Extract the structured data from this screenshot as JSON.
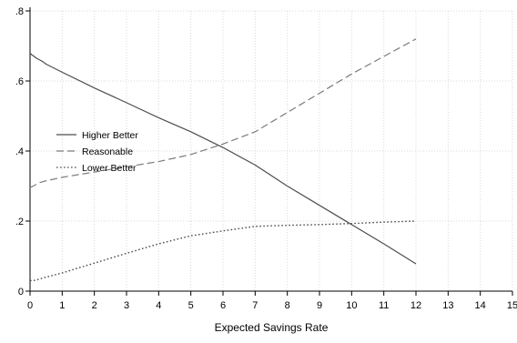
{
  "chart_data": {
    "type": "line",
    "xlabel": "Expected Savings Rate",
    "ylabel": "",
    "xlim": [
      0,
      15
    ],
    "ylim": [
      0,
      0.8
    ],
    "x_ticks": [
      0,
      1,
      2,
      3,
      4,
      5,
      6,
      7,
      8,
      9,
      10,
      11,
      12,
      13,
      14,
      15
    ],
    "x_tick_labels": [
      "0",
      "1",
      "2",
      "3",
      "4",
      "5",
      "6",
      "7",
      "8",
      "9",
      "10",
      "11",
      "12",
      "13",
      "14",
      "15"
    ],
    "y_ticks": [
      0,
      0.2,
      0.4,
      0.6,
      0.8
    ],
    "y_tick_labels": [
      "0",
      ".2",
      ".4",
      ".6",
      ".8"
    ],
    "grid": true,
    "legend_position": "left-middle",
    "series": [
      {
        "name": "Higher Better",
        "style": "solid",
        "color": "#4d4d4d",
        "x": [
          0,
          0.05,
          0.1,
          0.2,
          0.3,
          0.4,
          0.5,
          1,
          2,
          3,
          4,
          5,
          6,
          7,
          8,
          9,
          10,
          11,
          12
        ],
        "y": [
          0.68,
          0.675,
          0.672,
          0.665,
          0.66,
          0.655,
          0.648,
          0.625,
          0.58,
          0.538,
          0.495,
          0.455,
          0.41,
          0.36,
          0.3,
          0.245,
          0.19,
          0.135,
          0.078
        ]
      },
      {
        "name": "Reasonable",
        "style": "dashed",
        "color": "#7a7a7a",
        "x": [
          0,
          0.05,
          0.1,
          0.2,
          0.3,
          0.5,
          1,
          2,
          3,
          4,
          5,
          6,
          7,
          8,
          9,
          10,
          11,
          12
        ],
        "y": [
          0.295,
          0.298,
          0.3,
          0.305,
          0.31,
          0.315,
          0.325,
          0.34,
          0.355,
          0.37,
          0.39,
          0.42,
          0.455,
          0.51,
          0.565,
          0.62,
          0.67,
          0.72
        ]
      },
      {
        "name": "Lower Better",
        "style": "dotted",
        "color": "#4d4d4d",
        "x": [
          0,
          0.1,
          0.2,
          0.5,
          1,
          2,
          3,
          4,
          5,
          6,
          7,
          8,
          9,
          10,
          11,
          12
        ],
        "y": [
          0.03,
          0.03,
          0.032,
          0.04,
          0.052,
          0.08,
          0.108,
          0.135,
          0.158,
          0.172,
          0.185,
          0.188,
          0.19,
          0.193,
          0.197,
          0.2
        ]
      }
    ]
  },
  "colors": {
    "grid": "#d9d9d9",
    "axis": "#000000",
    "background": "#ffffff"
  }
}
